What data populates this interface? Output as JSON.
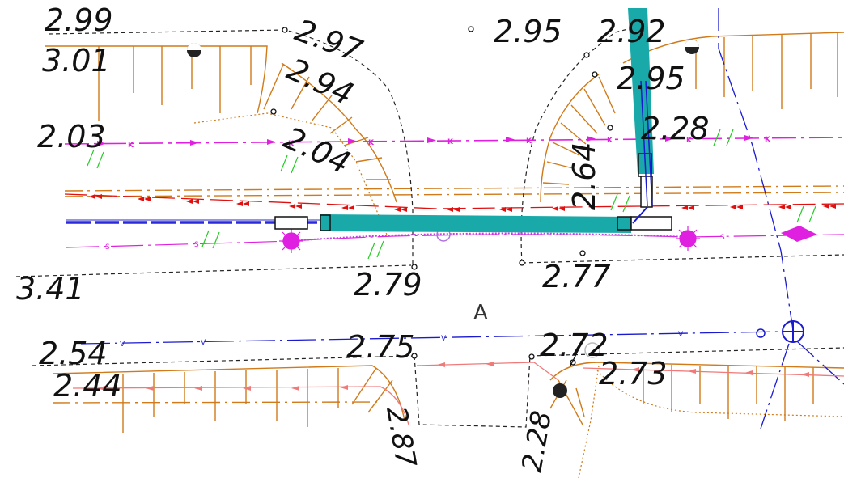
{
  "zone_label": "A",
  "elevations": {
    "e1": "2.99",
    "e2": "3.01",
    "e3": "2.97",
    "e4": "2.95",
    "e5": "2.92",
    "e6": "2.94",
    "e7": "2.95",
    "e8": "2.03",
    "e9": "2.04",
    "e10": "2.28",
    "e11": "2.64",
    "e12": "3.41",
    "e13": "2.79",
    "e14": "2.77",
    "e15": "2.54",
    "e16": "2.75",
    "e17": "2.72",
    "e18": "2.44",
    "e19": "2.73",
    "e20": "2.87",
    "e21": "2.28"
  },
  "line_markers": {
    "gas": "K",
    "sewer": "S",
    "water": "V"
  },
  "colors": {
    "gas_line": "#e020e0",
    "heating_line": "#e01010",
    "water_line": "#1a1ad0",
    "cable": "#2a2ad8",
    "curb": "#d07a1a",
    "new_pipe": "#1aa9a9",
    "boundary": "#222222",
    "vegetation": "#22cc22",
    "salmon_line": "#f07a7a"
  }
}
